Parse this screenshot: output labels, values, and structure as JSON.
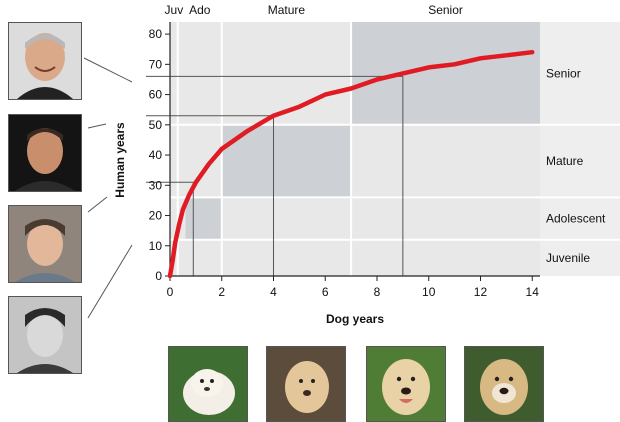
{
  "chart_data": {
    "type": "line",
    "xlabel": "Dog years",
    "ylabel": "Human years",
    "xlim": [
      0,
      14.3
    ],
    "ylim": [
      0,
      84
    ],
    "xticks": [
      0,
      2,
      4,
      6,
      8,
      10,
      12,
      14
    ],
    "yticks": [
      0,
      10,
      20,
      30,
      40,
      50,
      60,
      70,
      80
    ],
    "series": [
      {
        "color": "#e01b24",
        "x": [
          0,
          0.1,
          0.2,
          0.35,
          0.5,
          0.75,
          1,
          1.5,
          2,
          3,
          4,
          5,
          6,
          7,
          8,
          9,
          10,
          11,
          12,
          13,
          14
        ],
        "y": [
          0,
          5,
          11,
          17,
          22,
          27,
          31,
          37,
          42,
          48,
          53,
          56,
          60,
          62,
          65,
          67,
          69,
          70,
          72,
          73,
          74
        ]
      }
    ],
    "top_stages": [
      {
        "label": "Juv",
        "x_from": 0,
        "x_to": 0.3
      },
      {
        "label": "Ado",
        "x_from": 0.3,
        "x_to": 2
      },
      {
        "label": "Mature",
        "x_from": 2,
        "x_to": 7
      },
      {
        "label": "Senior",
        "x_from": 7,
        "x_to": 14.3
      }
    ],
    "right_stages": [
      {
        "label": "Senior",
        "y_from": 50,
        "y_to": 84
      },
      {
        "label": "Mature",
        "y_from": 26,
        "y_to": 50
      },
      {
        "label": "Adolescent",
        "y_from": 12,
        "y_to": 26
      },
      {
        "label": "Juvenile",
        "y_from": 0,
        "y_to": 12
      }
    ],
    "highlight_boxes": [
      {
        "x_from": 7,
        "x_to": 14.3,
        "y_from": 50,
        "y_to": 84
      },
      {
        "x_from": 2,
        "x_to": 7,
        "y_from": 26,
        "y_to": 50
      },
      {
        "x_from": 0.6,
        "x_to": 2,
        "y_from": 12,
        "y_to": 26
      }
    ],
    "guide_points": [
      {
        "x": 0.9,
        "y": 31
      },
      {
        "x": 4,
        "y": 53
      },
      {
        "x": 9,
        "y": 66
      }
    ],
    "colors": {
      "curve": "#e01b24",
      "band": "#e8e8e8",
      "highlight": "#cdd0d4",
      "axis": "#222222"
    }
  },
  "photos": {
    "people": [
      "adult-man-portrait-1",
      "adult-man-portrait-2",
      "young-man-portrait",
      "child-portrait"
    ],
    "dogs": [
      "labrador-puppy-photo",
      "young-labrador-photo",
      "adult-labrador-photo",
      "senior-labrador-photo"
    ]
  }
}
